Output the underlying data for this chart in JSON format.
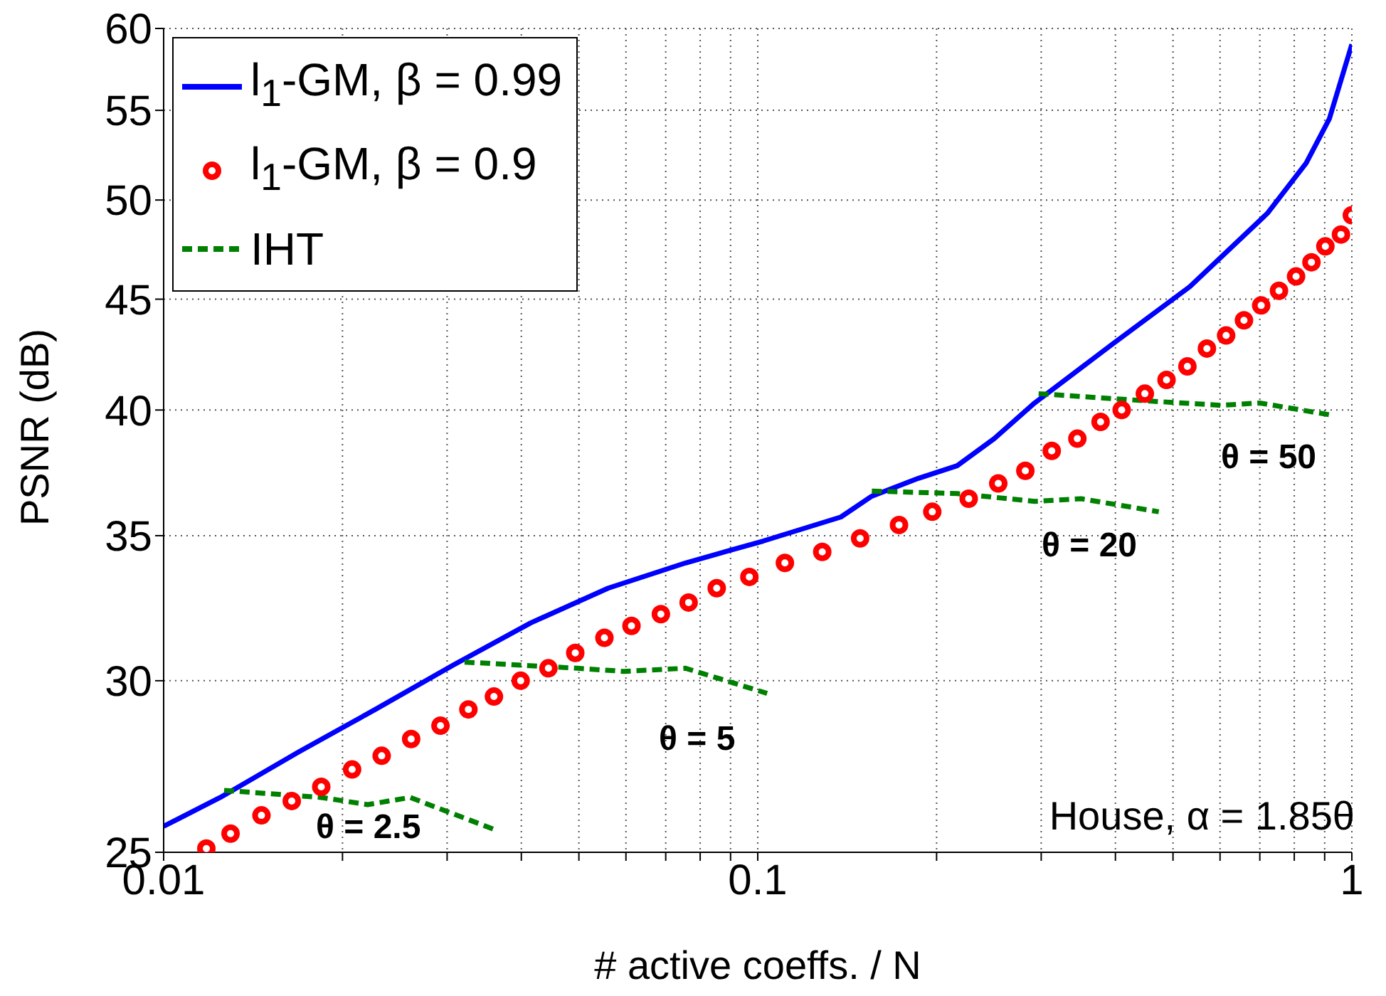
{
  "chart_data": {
    "type": "line",
    "xlabel": "# active coeffs. / N",
    "ylabel": "PSNR (dB)",
    "log": "xy",
    "grid": true,
    "legend": "top left",
    "xlim": [
      0.01,
      1
    ],
    "ylim": [
      25,
      60
    ],
    "xticks": [
      0.01,
      {
        "value": 0.02,
        "label": null
      },
      {
        "value": 0.03,
        "label": null
      },
      {
        "value": 0.04,
        "label": null
      },
      {
        "value": 0.05,
        "label": null
      },
      {
        "value": 0.06,
        "label": null
      },
      {
        "value": 0.07,
        "label": null
      },
      {
        "value": 0.08,
        "label": null
      },
      {
        "value": 0.09,
        "label": null
      },
      0.1,
      {
        "value": 0.2,
        "label": null
      },
      {
        "value": 0.3,
        "label": null
      },
      {
        "value": 0.4,
        "label": null
      },
      {
        "value": 0.5,
        "label": null
      },
      {
        "value": 0.6,
        "label": null
      },
      {
        "value": 0.7,
        "label": null
      },
      {
        "value": 0.8,
        "label": null
      },
      {
        "value": 0.9,
        "label": null
      },
      1
    ],
    "yticks": [
      25,
      30,
      35,
      40,
      45,
      50,
      55,
      60
    ],
    "series": [
      {
        "name": "l$_{1}$-GM, β = 0.99",
        "type": "line",
        "color": "#0000ff",
        "marker": "none",
        "line_style": "solid",
        "x": [
          0.01,
          0.01245,
          0.01683,
          0.02272,
          0.0307,
          0.04147,
          0.056,
          0.0756,
          0.1021,
          0.138,
          0.1556,
          0.1864,
          0.2166,
          0.25,
          0.2924,
          0.3953,
          0.5336,
          0.7209,
          0.8376,
          0.9163,
          1.0
        ],
        "values": [
          25.7,
          26.5,
          27.8,
          29.1,
          30.5,
          31.9,
          33.1,
          34.0,
          34.8,
          35.7,
          36.5,
          37.2,
          37.7,
          38.8,
          40.3,
          42.9,
          45.6,
          49.3,
          52.0,
          54.5,
          59.0
        ]
      },
      {
        "name": "l$_{1}$-GM, β = 0.9",
        "type": "scatter",
        "color": "#ff0000",
        "marker": "circle",
        "x": [
          0.0118,
          0.01296,
          0.01461,
          0.01643,
          0.01842,
          0.02076,
          0.02328,
          0.0261,
          0.02924,
          0.03258,
          0.03597,
          0.0399,
          0.04443,
          0.0493,
          0.0552,
          0.0613,
          0.0687,
          0.0765,
          0.0853,
          0.0968,
          0.1111,
          0.1284,
          0.1487,
          0.1729,
          0.1967,
          0.2265,
          0.254,
          0.2821,
          0.3125,
          0.3451,
          0.3776,
          0.4098,
          0.4483,
          0.4876,
          0.5287,
          0.5702,
          0.6143,
          0.6583,
          0.7037,
          0.754,
          0.8056,
          0.8551,
          0.9025,
          0.9587,
          1.0
        ],
        "values": [
          25.1,
          25.5,
          26.0,
          26.4,
          26.8,
          27.3,
          27.7,
          28.2,
          28.6,
          29.1,
          29.5,
          30.0,
          30.4,
          30.9,
          31.4,
          31.8,
          32.2,
          32.6,
          33.1,
          33.5,
          34.0,
          34.4,
          34.9,
          35.4,
          35.9,
          36.4,
          37.0,
          37.5,
          38.3,
          38.8,
          39.5,
          40.0,
          40.7,
          41.3,
          41.9,
          42.7,
          43.3,
          44.0,
          44.7,
          45.4,
          46.1,
          46.8,
          47.6,
          48.2,
          49.2
        ]
      },
      {
        "name": "IHT",
        "type": "line",
        "color": "#008000",
        "marker": "none",
        "line_style": "dashed",
        "x": [
          0.01264,
          0.01842,
          0.02205,
          0.026,
          0.03621
        ],
        "values": [
          26.7,
          26.5,
          26.3,
          26.5,
          25.6
        ]
      },
      {
        "type": "line",
        "color": "#008000",
        "marker": "none",
        "line_style": "dashed",
        "x": [
          0.0321,
          0.0497,
          0.0595,
          0.0756,
          0.1037
        ],
        "values": [
          30.6,
          30.4,
          30.3,
          30.4,
          29.6
        ]
      },
      {
        "type": "line",
        "color": "#008000",
        "marker": "none",
        "line_style": "dashed",
        "x": [
          0.1556,
          0.2166,
          0.2924,
          0.3504,
          0.4732
        ],
        "values": [
          36.7,
          36.6,
          36.3,
          36.4,
          35.9
        ]
      },
      {
        "type": "line",
        "color": "#008000",
        "marker": "none",
        "line_style": "dashed",
        "x": [
          0.297,
          0.4456,
          0.6017,
          0.6996,
          0.9163
        ],
        "values": [
          40.7,
          40.4,
          40.2,
          40.3,
          39.8
        ]
      }
    ],
    "annotations": [
      "θ = 2.5",
      "θ = 5",
      "θ = 20",
      "θ = 50",
      "House, α = 1.85θ"
    ]
  }
}
